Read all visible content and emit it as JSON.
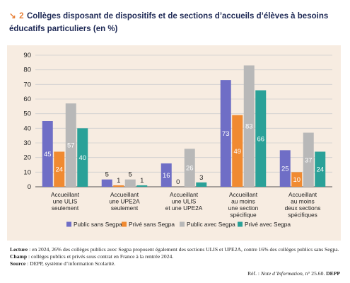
{
  "figure": {
    "number": "2",
    "arrow": "↘",
    "title": "Collèges disposant de dispositifs et de sections d’accueils d’élèves à besoins éducatifs particuliers (en %)"
  },
  "chart_data": {
    "type": "bar",
    "categories": [
      [
        "Accueillant",
        "une ULIS",
        "seulement"
      ],
      [
        "Accueillant",
        "une UPE2A",
        "seulement"
      ],
      [
        "Accueillant",
        "une ULIS",
        "et une UPE2A"
      ],
      [
        "Accueillant",
        "au moins",
        "une section",
        "spécifique"
      ],
      [
        "Accueillant",
        "au moins",
        "deux sections",
        "spécifiques"
      ]
    ],
    "series": [
      {
        "name": "Public sans Segpa",
        "color": "#6f6ec6",
        "values": [
          45,
          5,
          16,
          73,
          25
        ]
      },
      {
        "name": "Privé sans Segpa",
        "color": "#f08a31",
        "values": [
          24,
          1,
          0,
          49,
          10
        ]
      },
      {
        "name": "Public avec Segpa",
        "color": "#b8b8b8",
        "values": [
          57,
          5,
          26,
          83,
          37
        ]
      },
      {
        "name": "Privé avec Segpa",
        "color": "#2aa198",
        "values": [
          40,
          1,
          3,
          66,
          24
        ]
      }
    ],
    "ylim": [
      0,
      90
    ],
    "yticks": [
      0,
      10,
      20,
      30,
      40,
      50,
      60,
      70,
      80,
      90
    ],
    "grid": true,
    "legend_position": "bottom"
  },
  "notes": {
    "lecture_label": "Lecture",
    "lecture_text": " : en 2024, 26% des collèges publics avec Segpa proposent également des sections ULIS et UPE2A, contre 16% des collèges publics sans Segpa.",
    "champ_label": "Champ",
    "champ_text": " : collèges publics et privés sous contrat en France à la rentrée 2024.",
    "source_label": "Source",
    "source_text": " : DEPP, système d’information Scolarité."
  },
  "reference": {
    "prefix": "Réf. : ",
    "publication": "Note d’Information",
    "number": ", n° 25.60. ",
    "org": "DEPP"
  }
}
